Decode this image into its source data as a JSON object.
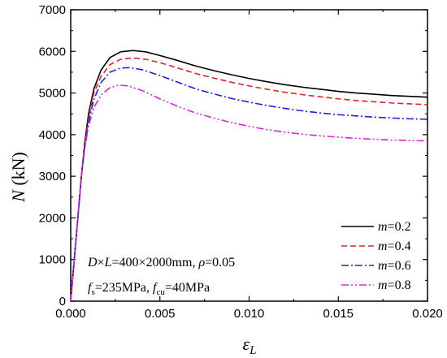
{
  "chart_data": {
    "type": "line",
    "xlabel": "ε_L",
    "ylabel": "N (kN)",
    "xlim": [
      0,
      0.02
    ],
    "ylim": [
      0,
      7000
    ],
    "x_ticks": [
      "0.000",
      "0.005",
      "0.010",
      "0.015",
      "0.020"
    ],
    "y_ticks": [
      "0",
      "1000",
      "2000",
      "3000",
      "4000",
      "5000",
      "6000",
      "7000"
    ],
    "grid": false,
    "legend_position": "bottom-right",
    "annotations": {
      "line1": "D×L=400×2000mm, ρ=0.05",
      "line2": "fs=235MPa, fcu=40MPa"
    },
    "series": [
      {
        "name": "m=0.2",
        "color": "#000000",
        "dash": "solid",
        "points": [
          [
            0,
            0
          ],
          [
            0.0002,
            1000
          ],
          [
            0.0004,
            2000
          ],
          [
            0.0006,
            3000
          ],
          [
            0.0008,
            3850
          ],
          [
            0.001,
            4500
          ],
          [
            0.0013,
            5100
          ],
          [
            0.0017,
            5550
          ],
          [
            0.0022,
            5850
          ],
          [
            0.0028,
            5990
          ],
          [
            0.0035,
            6020
          ],
          [
            0.0042,
            5990
          ],
          [
            0.005,
            5900
          ],
          [
            0.006,
            5780
          ],
          [
            0.007,
            5650
          ],
          [
            0.008,
            5540
          ],
          [
            0.009,
            5440
          ],
          [
            0.01,
            5350
          ],
          [
            0.011,
            5270
          ],
          [
            0.012,
            5200
          ],
          [
            0.013,
            5140
          ],
          [
            0.014,
            5090
          ],
          [
            0.015,
            5040
          ],
          [
            0.016,
            5000
          ],
          [
            0.017,
            4970
          ],
          [
            0.018,
            4940
          ],
          [
            0.019,
            4920
          ],
          [
            0.02,
            4900
          ]
        ]
      },
      {
        "name": "m=0.4",
        "color": "#e8201f",
        "dash": "dashed",
        "points": [
          [
            0,
            0
          ],
          [
            0.0002,
            1000
          ],
          [
            0.0004,
            2000
          ],
          [
            0.0006,
            3000
          ],
          [
            0.0008,
            3800
          ],
          [
            0.001,
            4400
          ],
          [
            0.0013,
            5000
          ],
          [
            0.0017,
            5400
          ],
          [
            0.0022,
            5680
          ],
          [
            0.0028,
            5810
          ],
          [
            0.0035,
            5840
          ],
          [
            0.0042,
            5810
          ],
          [
            0.005,
            5730
          ],
          [
            0.006,
            5600
          ],
          [
            0.007,
            5470
          ],
          [
            0.008,
            5360
          ],
          [
            0.009,
            5260
          ],
          [
            0.01,
            5170
          ],
          [
            0.011,
            5090
          ],
          [
            0.012,
            5020
          ],
          [
            0.013,
            4960
          ],
          [
            0.014,
            4910
          ],
          [
            0.015,
            4860
          ],
          [
            0.016,
            4820
          ],
          [
            0.017,
            4790
          ],
          [
            0.018,
            4760
          ],
          [
            0.019,
            4740
          ],
          [
            0.02,
            4720
          ]
        ]
      },
      {
        "name": "m=0.6",
        "color": "#1f1fe0",
        "dash": "dashdot",
        "points": [
          [
            0,
            0
          ],
          [
            0.0002,
            1000
          ],
          [
            0.0004,
            2000
          ],
          [
            0.0006,
            3000
          ],
          [
            0.0008,
            3750
          ],
          [
            0.001,
            4300
          ],
          [
            0.0013,
            4850
          ],
          [
            0.0017,
            5250
          ],
          [
            0.0022,
            5500
          ],
          [
            0.0028,
            5600
          ],
          [
            0.0033,
            5610
          ],
          [
            0.004,
            5560
          ],
          [
            0.005,
            5420
          ],
          [
            0.006,
            5260
          ],
          [
            0.007,
            5100
          ],
          [
            0.008,
            4980
          ],
          [
            0.009,
            4870
          ],
          [
            0.01,
            4780
          ],
          [
            0.011,
            4700
          ],
          [
            0.012,
            4630
          ],
          [
            0.013,
            4570
          ],
          [
            0.014,
            4520
          ],
          [
            0.015,
            4480
          ],
          [
            0.016,
            4450
          ],
          [
            0.017,
            4420
          ],
          [
            0.018,
            4400
          ],
          [
            0.019,
            4380
          ],
          [
            0.02,
            4370
          ]
        ]
      },
      {
        "name": "m=0.8",
        "color": "#e020e0",
        "dash": "dashdotdot",
        "points": [
          [
            0,
            0
          ],
          [
            0.0002,
            1000
          ],
          [
            0.0004,
            2000
          ],
          [
            0.0006,
            3000
          ],
          [
            0.0008,
            3700
          ],
          [
            0.001,
            4200
          ],
          [
            0.0013,
            4650
          ],
          [
            0.0017,
            4950
          ],
          [
            0.0022,
            5130
          ],
          [
            0.0027,
            5190
          ],
          [
            0.0032,
            5170
          ],
          [
            0.004,
            5060
          ],
          [
            0.005,
            4860
          ],
          [
            0.006,
            4680
          ],
          [
            0.007,
            4520
          ],
          [
            0.008,
            4400
          ],
          [
            0.009,
            4290
          ],
          [
            0.01,
            4200
          ],
          [
            0.011,
            4120
          ],
          [
            0.012,
            4060
          ],
          [
            0.013,
            4010
          ],
          [
            0.014,
            3970
          ],
          [
            0.015,
            3940
          ],
          [
            0.016,
            3910
          ],
          [
            0.017,
            3890
          ],
          [
            0.018,
            3870
          ],
          [
            0.019,
            3860
          ],
          [
            0.02,
            3850
          ]
        ]
      }
    ]
  }
}
